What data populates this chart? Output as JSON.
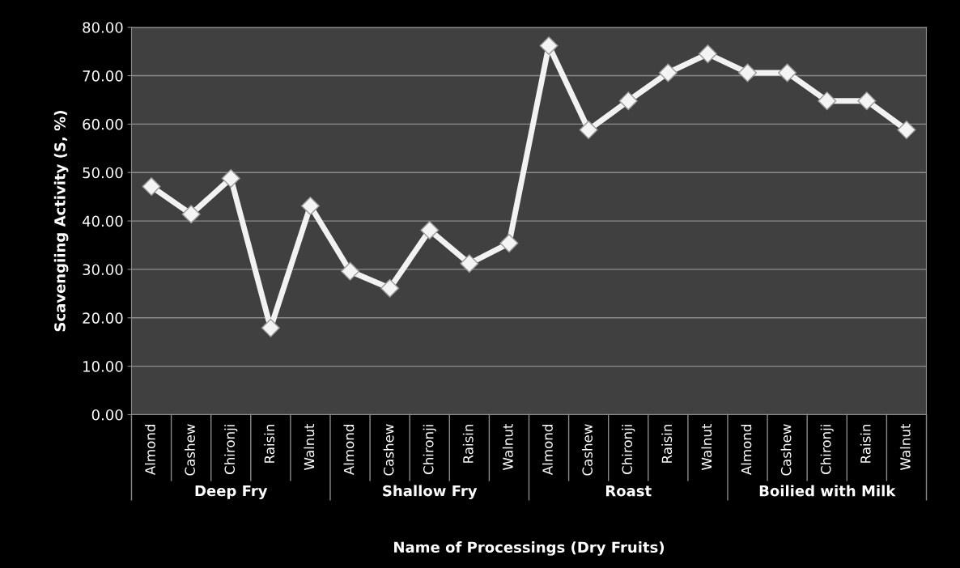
{
  "chart_data": {
    "type": "line",
    "xlabel": "Name of Processings (Dry Fruits)",
    "ylabel": "Scavengiing Activity (S, %)",
    "categories": [
      "Almond",
      "Cashew",
      "Chironji",
      "Raisin",
      "Walnut",
      "Almond",
      "Cashew",
      "Chironji",
      "Raisin",
      "Walnut",
      "Almond",
      "Cashew",
      "Chironji",
      "Raisin",
      "Walnut",
      "Almond",
      "Cashew",
      "Chironji",
      "Raisin",
      "Walnut"
    ],
    "series": [
      {
        "color": "#f2f2f2",
        "values": [
          47.1,
          41.4,
          48.8,
          17.9,
          43.1,
          29.6,
          26.1,
          38.1,
          31.2,
          35.4,
          76.2,
          58.8,
          64.8,
          70.6,
          74.5,
          70.6,
          70.6,
          64.8,
          64.8,
          58.8
        ]
      }
    ],
    "annotations": [
      "Deep Fry",
      "Shallow Fry",
      "Roast",
      "Boilied with Milk"
    ],
    "ylim": [
      0,
      80
    ],
    "yticks": [
      {
        "value": 0,
        "label": "0.00"
      },
      {
        "value": 10,
        "label": "10.00"
      },
      {
        "value": 20,
        "label": "20.00"
      },
      {
        "value": 30,
        "label": "30.00"
      },
      {
        "value": 40,
        "label": "40.00"
      },
      {
        "value": 50,
        "label": "50.00"
      },
      {
        "value": 60,
        "label": "60.00"
      },
      {
        "value": 70,
        "label": "70.00"
      },
      {
        "value": 80,
        "label": "80.00"
      }
    ],
    "grid": "y",
    "marker": "diamond",
    "line_style": "solid"
  }
}
